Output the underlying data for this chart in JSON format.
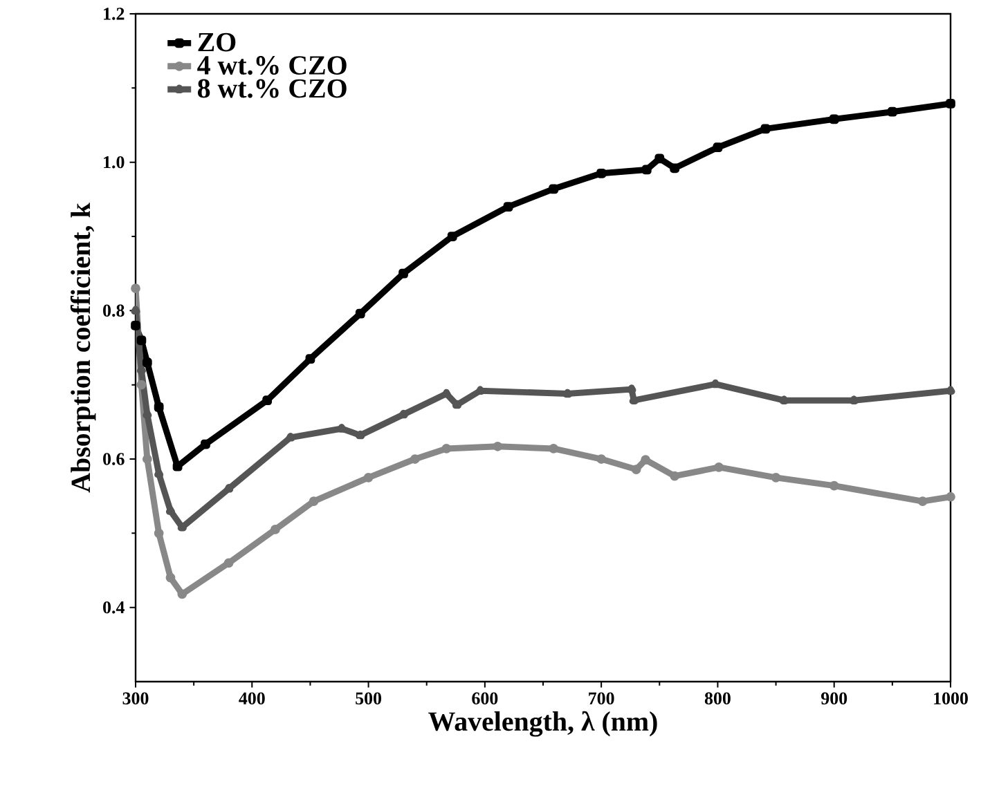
{
  "chart_data": {
    "type": "line",
    "xlabel": "Wavelength, λ (nm)",
    "ylabel": "Absorption coefficient, k",
    "xlim": [
      300,
      1000
    ],
    "ylim": [
      0.3,
      1.2
    ],
    "xticks": [
      300,
      400,
      500,
      600,
      700,
      800,
      900,
      1000
    ],
    "yticks": [
      0.4,
      0.6,
      0.8,
      {
        "value": 1.0,
        "label": "1.0"
      },
      1.2
    ],
    "legend": "top left",
    "grid": false,
    "series": [
      {
        "name": "ZO",
        "color": "#000000",
        "marker": "square",
        "x": [
          300,
          305,
          310,
          320,
          336,
          360,
          413,
          450,
          493,
          530,
          572,
          620,
          659,
          700,
          739,
          750,
          763,
          800,
          841,
          900,
          950,
          1000
        ],
        "values": [
          0.78,
          0.76,
          0.73,
          0.67,
          0.59,
          0.62,
          0.679,
          0.735,
          0.796,
          0.85,
          0.9,
          0.94,
          0.964,
          0.985,
          0.99,
          1.005,
          0.992,
          1.02,
          1.045,
          1.058,
          1.068,
          1.079
        ]
      },
      {
        "name": "4 wt.% CZO",
        "color": "#888888",
        "marker": "circle",
        "x": [
          300,
          305,
          310,
          320,
          330,
          340,
          380,
          420,
          453,
          500,
          540,
          567,
          611,
          659,
          700,
          730,
          738,
          763,
          801,
          850,
          900,
          976,
          1000
        ],
        "values": [
          0.83,
          0.7,
          0.6,
          0.5,
          0.44,
          0.418,
          0.46,
          0.505,
          0.543,
          0.575,
          0.6,
          0.614,
          0.617,
          0.614,
          0.6,
          0.586,
          0.599,
          0.577,
          0.589,
          0.575,
          0.564,
          0.543,
          0.549
        ]
      },
      {
        "name": "8 wt.% CZO",
        "color": "#555555",
        "marker": "triangle",
        "x": [
          300,
          305,
          310,
          320,
          330,
          340,
          380,
          433,
          477,
          493,
          530,
          567,
          576,
          596,
          671,
          726,
          728,
          798,
          857,
          917,
          1000
        ],
        "values": [
          0.8,
          0.72,
          0.66,
          0.58,
          0.53,
          0.508,
          0.56,
          0.629,
          0.641,
          0.632,
          0.66,
          0.688,
          0.673,
          0.692,
          0.688,
          0.694,
          0.679,
          0.701,
          0.679,
          0.679,
          0.692
        ]
      }
    ]
  }
}
